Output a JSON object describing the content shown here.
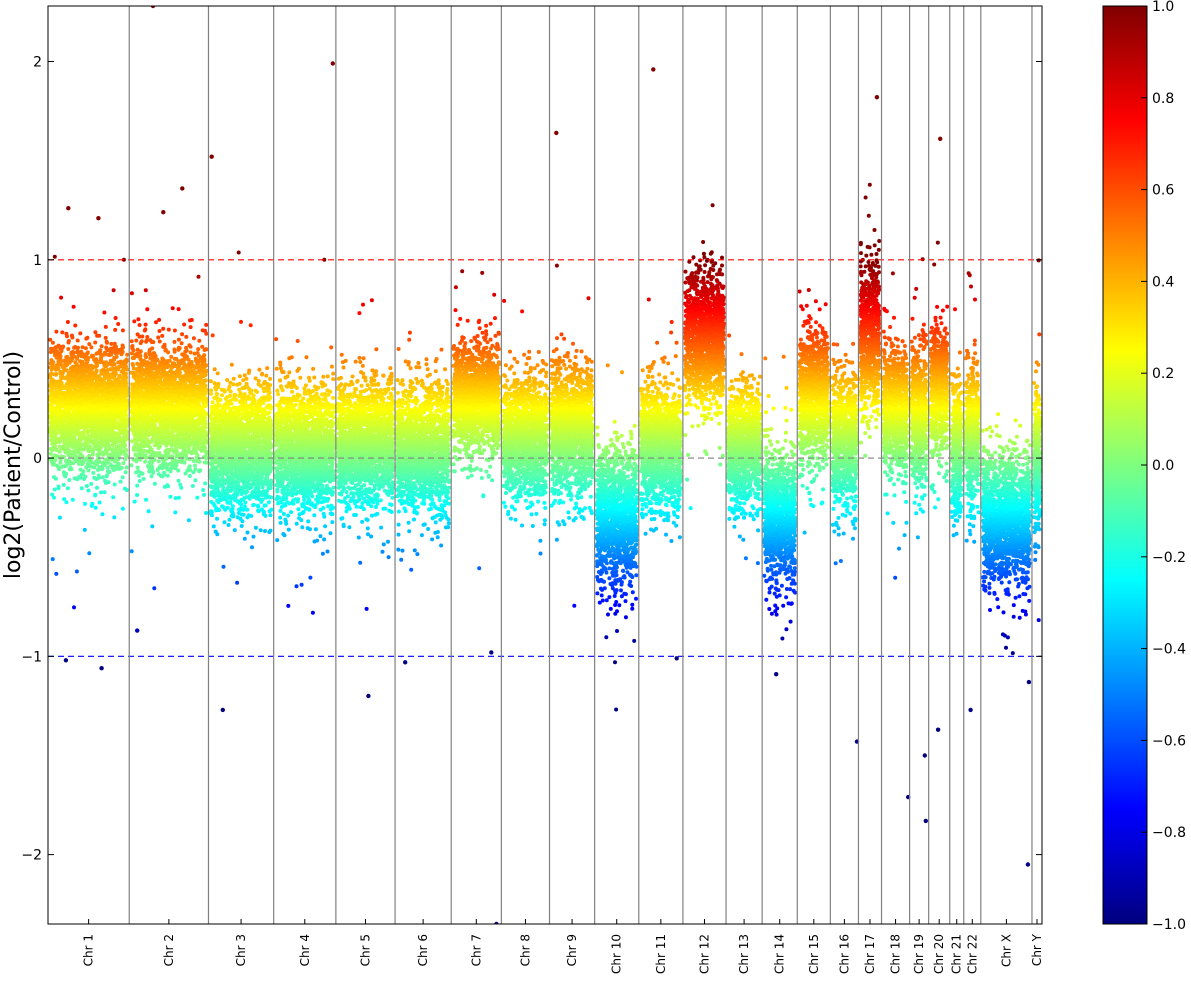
{
  "chart_data": {
    "type": "scatter",
    "title": "",
    "ylabel": "log2(Patient/Control)",
    "xlabel": "",
    "ylim": [
      -2.35,
      2.28
    ],
    "yticks": [
      -2,
      -1,
      0,
      1,
      2
    ],
    "ytick_labels": [
      "−2",
      "−1",
      "0",
      "1",
      "2"
    ],
    "reference_lines": [
      {
        "y": 1,
        "color": "#ff0000",
        "style": "dashed"
      },
      {
        "y": 0,
        "color": "#808080",
        "style": "dashed"
      },
      {
        "y": -1,
        "color": "#0000ff",
        "style": "dashed"
      }
    ],
    "colormap": "jet",
    "colorbar": {
      "range": [
        -1,
        1
      ],
      "ticks": [
        -1.0,
        -0.8,
        -0.6,
        -0.4,
        -0.2,
        0.0,
        0.2,
        0.4,
        0.6,
        0.8,
        1.0
      ],
      "tick_labels": [
        "−1.0",
        "−0.8",
        "−0.6",
        "−0.4",
        "−0.2",
        "0.0",
        "0.2",
        "0.4",
        "0.6",
        "0.8",
        "1.0"
      ]
    },
    "chromosomes": [
      {
        "label": "Chr 1",
        "length": 81,
        "median": 0.25,
        "spread": 0.16
      },
      {
        "label": "Chr 2",
        "length": 79,
        "median": 0.25,
        "spread": 0.15
      },
      {
        "label": "Chr 3",
        "length": 65,
        "median": 0.05,
        "spread": 0.15
      },
      {
        "label": "Chr 4",
        "length": 62,
        "median": 0.05,
        "spread": 0.15
      },
      {
        "label": "Chr 5",
        "length": 59,
        "median": 0.08,
        "spread": 0.15
      },
      {
        "label": "Chr 6",
        "length": 56,
        "median": 0.05,
        "spread": 0.15
      },
      {
        "label": "Chr 7",
        "length": 50,
        "median": 0.3,
        "spread": 0.14
      },
      {
        "label": "Chr 8",
        "length": 48,
        "median": 0.1,
        "spread": 0.15
      },
      {
        "label": "Chr 9",
        "length": 45,
        "median": 0.15,
        "spread": 0.16
      },
      {
        "label": "Chr 10",
        "length": 44,
        "median": -0.3,
        "spread": 0.17
      },
      {
        "label": "Chr 11",
        "length": 44,
        "median": 0.05,
        "spread": 0.16
      },
      {
        "label": "Chr 12",
        "length": 43,
        "median": 0.6,
        "spread": 0.16
      },
      {
        "label": "Chr 13",
        "length": 36,
        "median": 0.05,
        "spread": 0.15
      },
      {
        "label": "Chr 14",
        "length": 35,
        "median": -0.3,
        "spread": 0.16
      },
      {
        "label": "Chr 15",
        "length": 33,
        "median": 0.3,
        "spread": 0.16
      },
      {
        "label": "Chr 16",
        "length": 28,
        "median": 0.1,
        "spread": 0.17
      },
      {
        "label": "Chr 17",
        "length": 23,
        "median": 0.6,
        "spread": 0.18
      },
      {
        "label": "Chr 18",
        "length": 28,
        "median": 0.25,
        "spread": 0.16
      },
      {
        "label": "Chr 19",
        "length": 19,
        "median": 0.2,
        "spread": 0.18
      },
      {
        "label": "Chr 20",
        "length": 21,
        "median": 0.35,
        "spread": 0.16
      },
      {
        "label": "Chr 21",
        "length": 14,
        "median": 0.05,
        "spread": 0.16
      },
      {
        "label": "Chr 22",
        "length": 17,
        "median": 0.1,
        "spread": 0.17
      },
      {
        "label": "Chr X",
        "length": 51,
        "median": -0.3,
        "spread": 0.16
      },
      {
        "label": "Chr Y",
        "length": 10,
        "median": 0.0,
        "spread": 0.17
      }
    ],
    "notable_points": [
      {
        "chr": "Chr 1",
        "pos": 0.25,
        "y": 1.26
      },
      {
        "chr": "Chr 1",
        "pos": 0.62,
        "y": 1.21
      },
      {
        "chr": "Chr 1",
        "pos": 0.22,
        "y": -1.02
      },
      {
        "chr": "Chr 1",
        "pos": 0.66,
        "y": -1.06
      },
      {
        "chr": "Chr 2",
        "pos": 0.3,
        "y": 2.28
      },
      {
        "chr": "Chr 2",
        "pos": 0.67,
        "y": 1.36
      },
      {
        "chr": "Chr 2",
        "pos": 0.43,
        "y": 1.24
      },
      {
        "chr": "Chr 2",
        "pos": 0.1,
        "y": -0.87
      },
      {
        "chr": "Chr 3",
        "pos": 0.05,
        "y": 1.52
      },
      {
        "chr": "Chr 3",
        "pos": 0.22,
        "y": -1.27
      },
      {
        "chr": "Chr 4",
        "pos": 0.95,
        "y": 1.99
      },
      {
        "chr": "Chr 5",
        "pos": 0.55,
        "y": -1.2
      },
      {
        "chr": "Chr 6",
        "pos": 0.18,
        "y": -1.03
      },
      {
        "chr": "Chr 7",
        "pos": 0.8,
        "y": -0.98
      },
      {
        "chr": "Chr 7",
        "pos": 0.9,
        "y": -2.35
      },
      {
        "chr": "Chr 9",
        "pos": 0.15,
        "y": 1.64
      },
      {
        "chr": "Chr 11",
        "pos": 0.33,
        "y": 1.96
      },
      {
        "chr": "Chr 11",
        "pos": 0.86,
        "y": -1.01
      },
      {
        "chr": "Chr 14",
        "pos": 0.4,
        "y": -1.09
      },
      {
        "chr": "Chr 16",
        "pos": 0.95,
        "y": -1.43
      },
      {
        "chr": "Chr 17",
        "pos": 0.8,
        "y": 1.82
      },
      {
        "chr": "Chr 18",
        "pos": 0.95,
        "y": -1.71
      },
      {
        "chr": "Chr 19",
        "pos": 0.85,
        "y": -1.83
      },
      {
        "chr": "Chr 19",
        "pos": 0.8,
        "y": -1.5
      },
      {
        "chr": "Chr 20",
        "pos": 0.45,
        "y": -1.37
      },
      {
        "chr": "Chr 20",
        "pos": 0.55,
        "y": 1.61
      },
      {
        "chr": "Chr 22",
        "pos": 0.4,
        "y": -1.27
      },
      {
        "chr": "Chr X",
        "pos": 0.92,
        "y": -2.05
      },
      {
        "chr": "Chr X",
        "pos": 0.94,
        "y": -1.13
      }
    ],
    "grid": false,
    "legend": "none"
  }
}
